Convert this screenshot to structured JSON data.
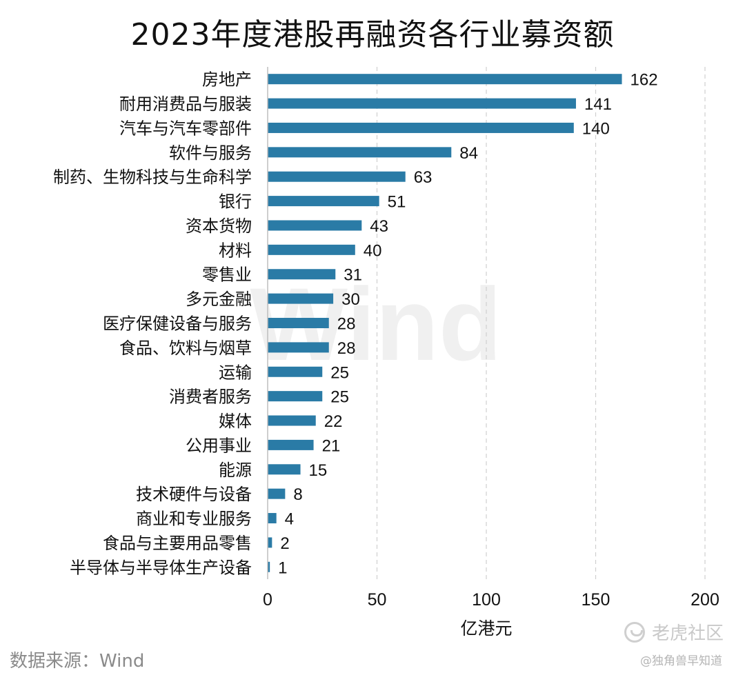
{
  "chart_data": {
    "type": "bar",
    "orientation": "horizontal",
    "title": "2023年度港股再融资各行业募资额",
    "xlabel": "亿港元",
    "ylabel": "",
    "xlim": [
      0,
      200
    ],
    "xticks": [
      0,
      50,
      100,
      150,
      200
    ],
    "grid": "vertical dashed",
    "bar_color": "#2a7ba6",
    "categories": [
      "房地产",
      "耐用消费品与服装",
      "汽车与汽车零部件",
      "软件与服务",
      "制药、生物科技与生命科学",
      "银行",
      "资本货物",
      "材料",
      "零售业",
      "多元金融",
      "医疗保健设备与服务",
      "食品、饮料与烟草",
      "运输",
      "消费者服务",
      "媒体",
      "公用事业",
      "能源",
      "技术硬件与设备",
      "商业和专业服务",
      "食品与主要用品零售",
      "半导体与半导体生产设备"
    ],
    "values": [
      162,
      141,
      140,
      84,
      63,
      51,
      43,
      40,
      31,
      30,
      28,
      28,
      25,
      25,
      22,
      21,
      15,
      8,
      4,
      2,
      1
    ],
    "data_labels": [
      "162",
      "141",
      "140",
      "84",
      "63",
      "51",
      "43",
      "40",
      "31",
      "30",
      "28",
      "28",
      "25",
      "25",
      "22",
      "21",
      "15",
      "8",
      "4",
      "2",
      "1"
    ]
  },
  "source": "数据来源：Wind",
  "watermark": {
    "background_text": "Wind",
    "brand": "老虎社区",
    "handle": "@独角兽早知道",
    "brand_icon": "tiger-logo-icon"
  }
}
